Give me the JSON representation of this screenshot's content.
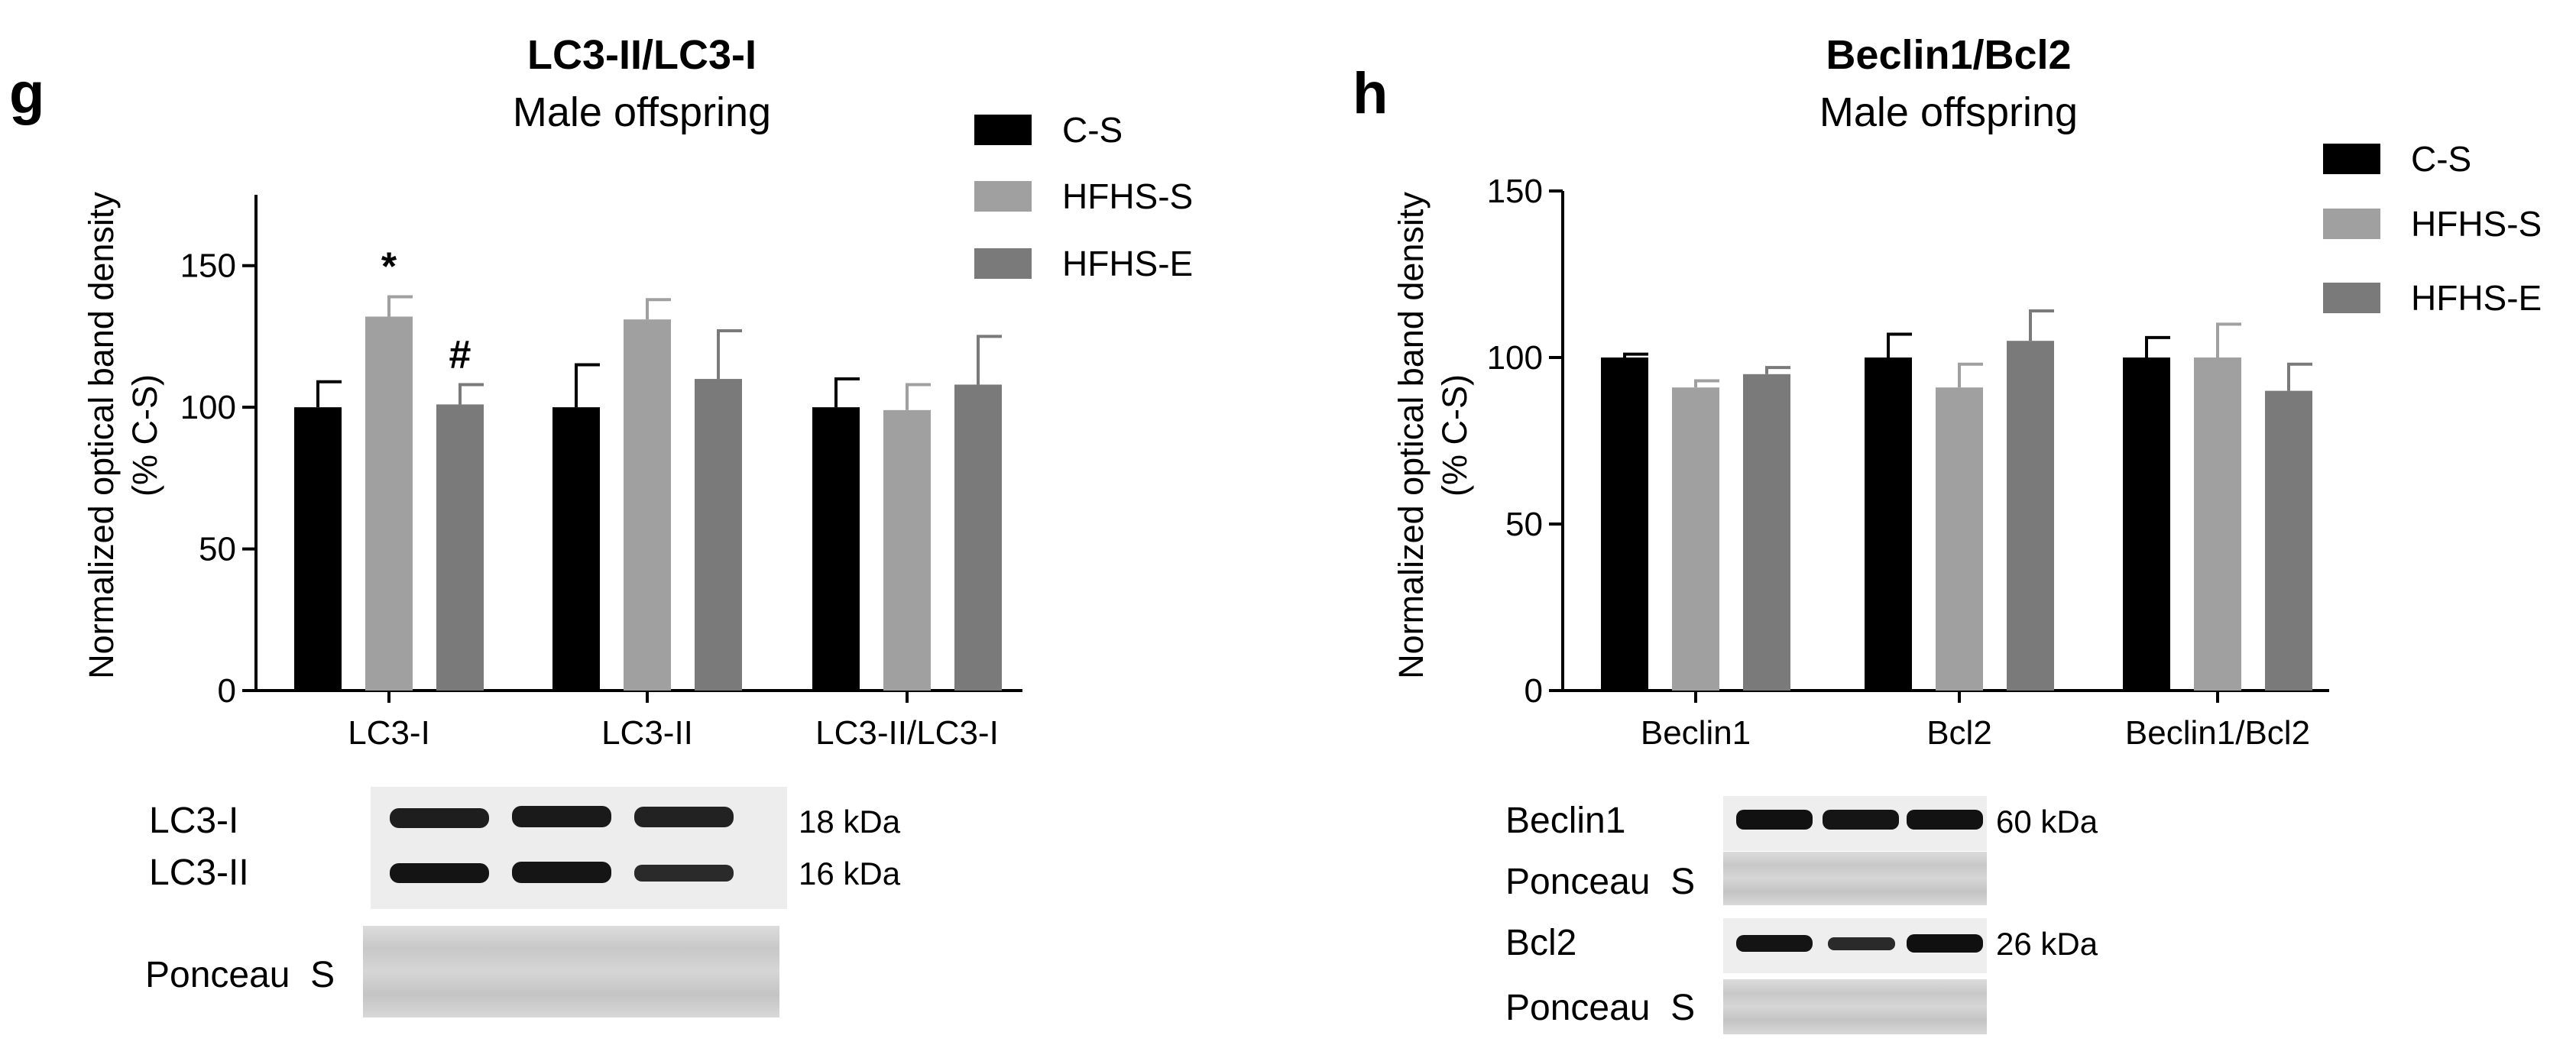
{
  "panels": {
    "g": {
      "letter": "g",
      "title": "LC3-II/LC3-I",
      "subtitle": "Male offspring",
      "ylabel_line1": "Normalized optical band density",
      "ylabel_line2": "(% C-S)",
      "blot": {
        "rows": [
          {
            "label": "LC3-I",
            "kda": "18 kDa"
          },
          {
            "label": "LC3-II",
            "kda": "16 kDa"
          }
        ],
        "ponceau": "Ponceau  S"
      }
    },
    "h": {
      "letter": "h",
      "title": "Beclin1/Bcl2",
      "subtitle": "Male offspring",
      "ylabel_line1": "Normalized optical band density",
      "ylabel_line2": "(% C-S)",
      "blot": {
        "rows": [
          {
            "label": "Beclin1",
            "kda": "60 kDa",
            "ponceau": "Ponceau  S"
          },
          {
            "label": "Bcl2",
            "kda": "26 kDa",
            "ponceau": "Ponceau  S"
          }
        ]
      }
    }
  },
  "chart_data": [
    {
      "type": "bar",
      "title": "LC3-II/LC3-I",
      "subtitle": "Male offspring",
      "ylabel": "Normalized optical band density (% C-S)",
      "categories": [
        "LC3-I",
        "LC3-II",
        "LC3-II/LC3-I"
      ],
      "ylim": [
        0,
        175
      ],
      "yticks": [
        0,
        50,
        100,
        150
      ],
      "legend_position": "top-right",
      "grid": false,
      "series": [
        {
          "name": "C-S",
          "color": "#000000",
          "values": [
            100,
            100,
            100
          ],
          "errors": [
            9,
            15,
            10
          ]
        },
        {
          "name": "HFHS-S",
          "color": "#a0a0a0",
          "values": [
            132,
            131,
            99
          ],
          "errors": [
            7,
            7,
            9
          ]
        },
        {
          "name": "HFHS-E",
          "color": "#7a7a7a",
          "values": [
            101,
            110,
            108
          ],
          "errors": [
            7,
            17,
            17
          ]
        }
      ],
      "annotations": [
        {
          "category": "LC3-I",
          "series": "HFHS-S",
          "text": "*"
        },
        {
          "category": "LC3-I",
          "series": "HFHS-E",
          "text": "#"
        }
      ]
    },
    {
      "type": "bar",
      "title": "Beclin1/Bcl2",
      "subtitle": "Male offspring",
      "ylabel": "Normalized optical band density (% C-S)",
      "categories": [
        "Beclin1",
        "Bcl2",
        "Beclin1/Bcl2"
      ],
      "ylim": [
        0,
        150
      ],
      "yticks": [
        0,
        50,
        100,
        150
      ],
      "legend_position": "top-right",
      "grid": false,
      "series": [
        {
          "name": "C-S",
          "color": "#000000",
          "values": [
            100,
            100,
            100
          ],
          "errors": [
            1,
            7,
            6
          ]
        },
        {
          "name": "HFHS-S",
          "color": "#a0a0a0",
          "values": [
            91,
            91,
            100
          ],
          "errors": [
            2,
            7,
            10
          ]
        },
        {
          "name": "HFHS-E",
          "color": "#7a7a7a",
          "values": [
            95,
            105,
            90
          ],
          "errors": [
            2,
            9,
            8
          ]
        }
      ],
      "annotations": []
    }
  ]
}
